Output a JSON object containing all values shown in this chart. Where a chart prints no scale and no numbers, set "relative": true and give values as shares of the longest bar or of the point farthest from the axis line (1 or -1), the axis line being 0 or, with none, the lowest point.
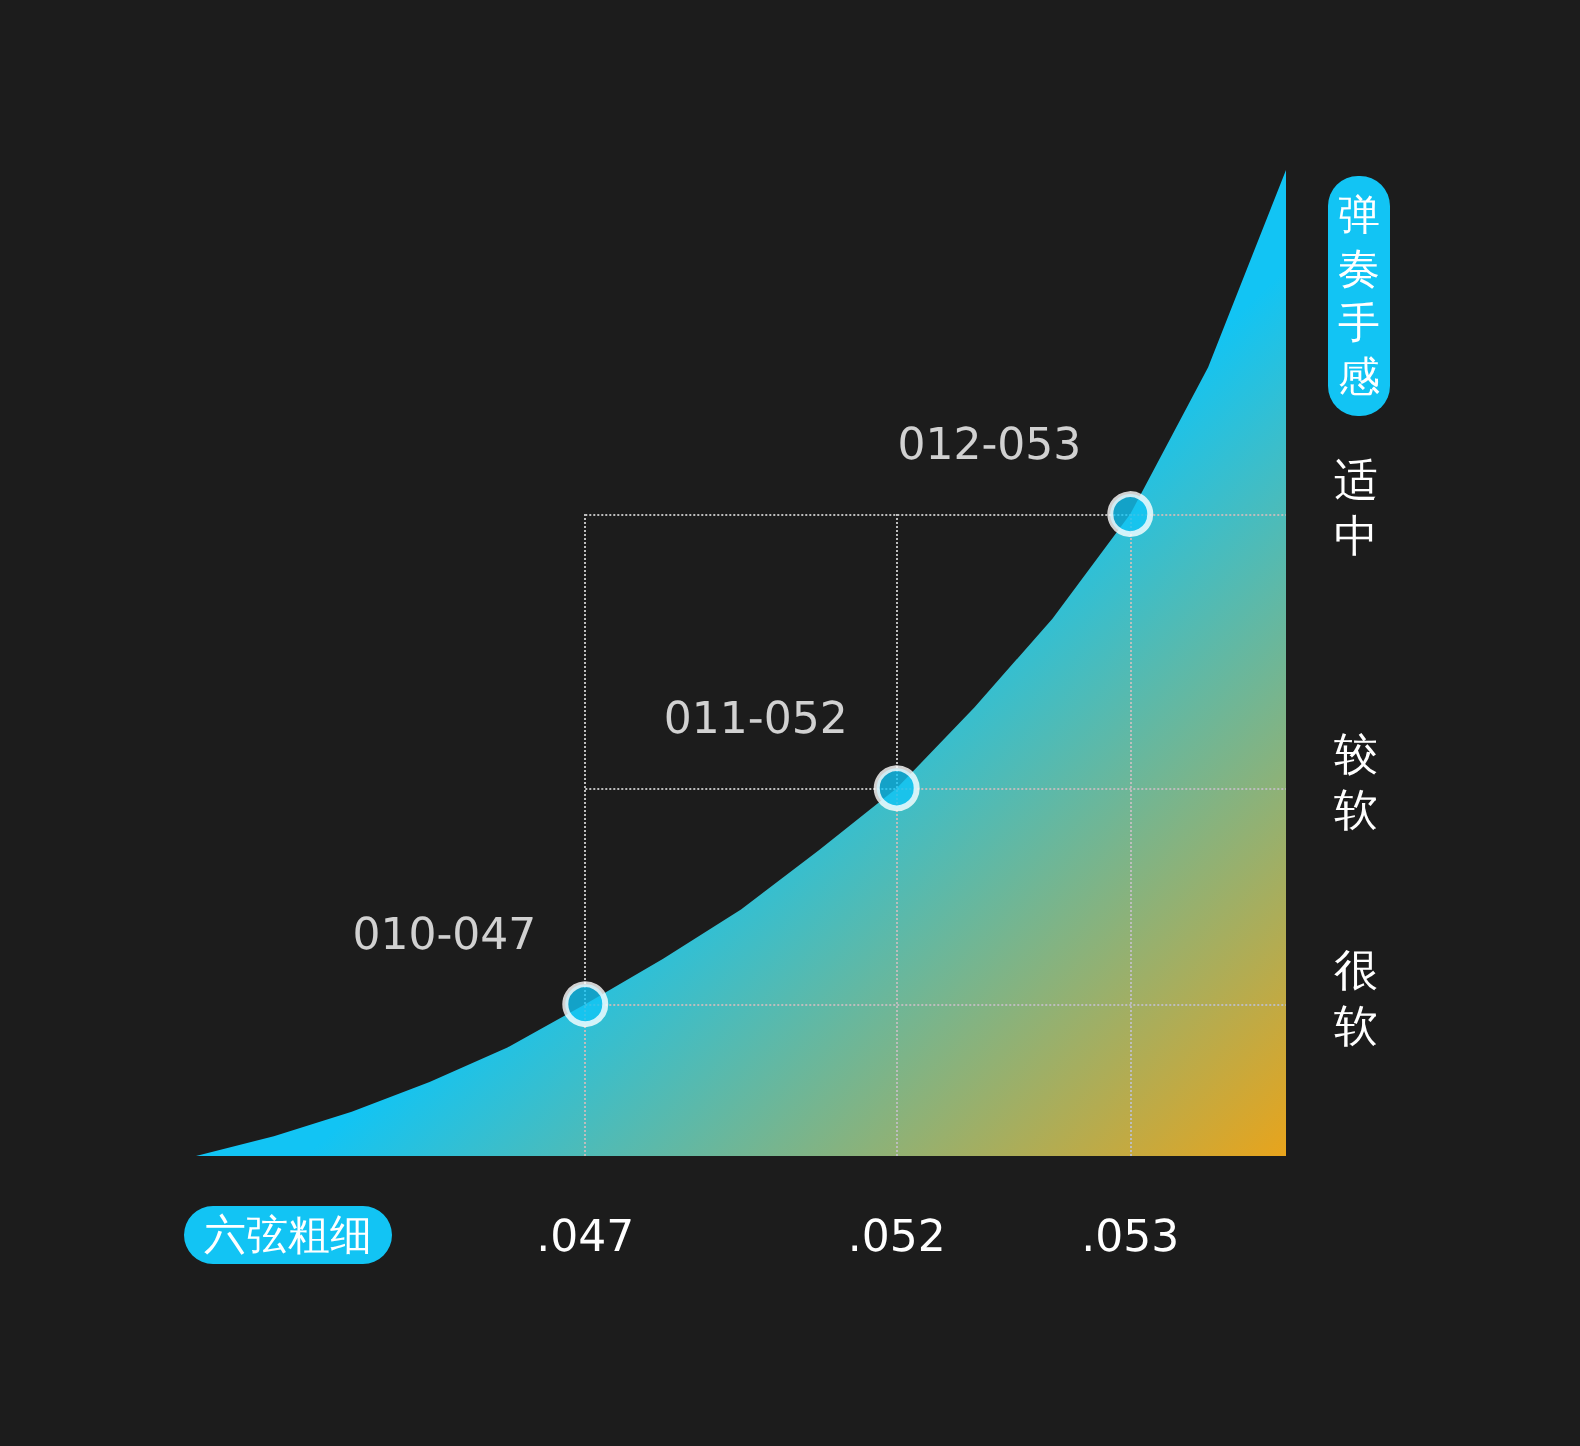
{
  "chart_data": {
    "type": "area",
    "relative": true,
    "xlabel": "六弦粗细",
    "y2label": "弹奏手感",
    "categories": [
      null,
      null,
      null,
      null,
      null,
      ".047",
      null,
      null,
      null,
      ".052",
      null,
      null,
      ".053",
      null,
      null
    ],
    "series": [
      {
        "color": "#12c4f4",
        "values": [
          0,
          0.02,
          0.045,
          0.075,
          0.11,
          0.154,
          0.2,
          0.25,
          0.31,
          0.373,
          0.455,
          0.545,
          0.651,
          0.8,
          1
        ]
      }
    ],
    "annotations": [
      {
        "text": "010-047",
        "x": ".047",
        "y": 0.154
      },
      {
        "text": "011-052",
        "x": ".052",
        "y": 0.373
      },
      {
        "text": "012-053",
        "x": ".053",
        "y": 0.651
      },
      "很软",
      "较软",
      "适中"
    ],
    "ref_lines": [
      {
        "axis": "x",
        "value": ".047",
        "line_style": "dotted"
      },
      {
        "axis": "x",
        "value": ".052",
        "line_style": "dotted"
      },
      {
        "axis": "x",
        "value": ".053",
        "line_style": "dotted"
      },
      {
        "axis": "y",
        "value": 0.154,
        "line_style": "dotted"
      },
      {
        "axis": "y",
        "value": 0.373,
        "line_style": "dotted"
      },
      {
        "axis": "y",
        "value": 0.651,
        "line_style": "dotted"
      }
    ]
  }
}
